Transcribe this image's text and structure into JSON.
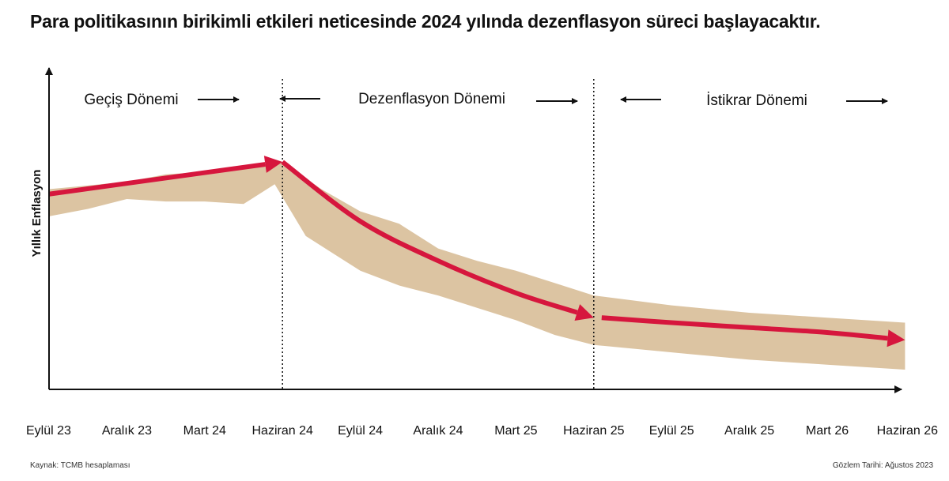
{
  "colors": {
    "band": "#dcc4a2",
    "arrow": "#d6163d",
    "axis": "#111111"
  },
  "chart_data": {
    "type": "area",
    "title": "Para politikasının birikimli etkileri neticesinde 2024 yılında dezenflasyon süreci başlayacaktır.",
    "xlabel": "",
    "ylabel": "Yıllık Enflasyon",
    "categories": [
      "Eylül 23",
      "Aralık 23",
      "Mart 24",
      "Haziran 24",
      "Eylül 24",
      "Aralık 24",
      "Mart 25",
      "Haziran 25",
      "Eylül 25",
      "Aralık 25",
      "Mart 26",
      "Haziran 26"
    ],
    "ylim": [
      0,
      100
    ],
    "grid": false,
    "phases": [
      {
        "label": "Geçiş Dönemi",
        "from": "Eylül 23",
        "to": "Haziran 24"
      },
      {
        "label": "Dezenflasyon Dönemi",
        "from": "Haziran 24",
        "to": "Haziran 25"
      },
      {
        "label": "İstikrar Dönemi",
        "from": "Haziran 25",
        "to": "Haziran 26"
      }
    ],
    "phase_boundaries": [
      "Haziran 24",
      "Haziran 25"
    ],
    "series": [
      {
        "name": "upper",
        "x": [
          0,
          1,
          1.5,
          2,
          2.5,
          3,
          3.5,
          4,
          4.5,
          5,
          5.5,
          6,
          6.5,
          7,
          8,
          9,
          10,
          11
        ],
        "values": [
          81,
          84,
          87,
          88,
          89,
          92,
          81,
          72,
          67,
          57,
          52,
          48,
          43,
          38,
          34,
          31,
          29,
          27
        ]
      },
      {
        "name": "lower",
        "x": [
          0,
          0.5,
          1,
          1.5,
          2,
          2.5,
          2.9,
          3.3,
          3.7,
          4,
          4.5,
          5,
          5.5,
          6,
          6.5,
          7,
          8,
          9,
          10,
          11
        ],
        "values": [
          70,
          73,
          77,
          76,
          76,
          75,
          83,
          62,
          54,
          48,
          42,
          38,
          33,
          28,
          22,
          18,
          15,
          12,
          10,
          8
        ]
      },
      {
        "name": "trend",
        "x": [
          0,
          3,
          4,
          5,
          6,
          7,
          8,
          9,
          10,
          11
        ],
        "values": [
          79,
          92,
          68,
          52,
          39,
          29,
          27,
          25,
          23,
          20
        ]
      }
    ]
  },
  "footer": {
    "source": "Kaynak: TCMB hesaplaması",
    "observation": "Gözlem Tarihi: Ağustos 2023"
  }
}
